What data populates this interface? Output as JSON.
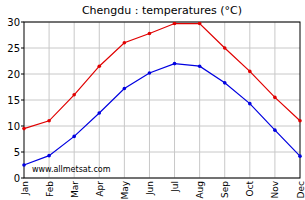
{
  "chart_data": {
    "type": "line",
    "title": "Chengdu : temperatures (°C)",
    "categories": [
      "Jan",
      "Feb",
      "Mar",
      "Apr",
      "May",
      "Jun",
      "Jul",
      "Aug",
      "Sep",
      "Oct",
      "Nov",
      "Dec"
    ],
    "series": [
      {
        "color": "#e00000",
        "marker": "circle",
        "values": [
          9.5,
          11,
          16,
          21.5,
          26,
          27.8,
          29.7,
          29.7,
          25,
          20.5,
          15.5,
          11
        ]
      },
      {
        "color": "#0000e0",
        "marker": "circle",
        "values": [
          2.5,
          4.3,
          8,
          12.5,
          17.2,
          20.2,
          22,
          21.5,
          18.3,
          14.3,
          9.2,
          4.2
        ]
      }
    ],
    "ylim": [
      0,
      30
    ],
    "yticks": [
      0,
      5,
      10,
      15,
      20,
      25,
      30
    ],
    "grid": true,
    "annotation": "www.allmetsat.com"
  }
}
